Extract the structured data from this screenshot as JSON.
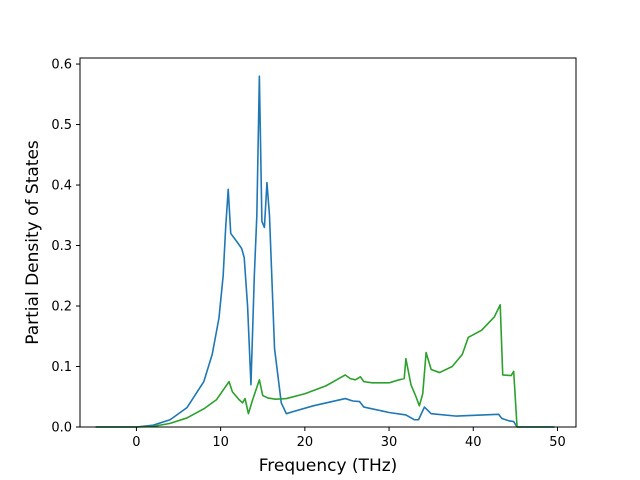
{
  "chart_data": {
    "type": "line",
    "xlabel": "Frequency (THz)",
    "ylabel": "Partial Density of States",
    "xlim": [
      -6.7,
      52.2
    ],
    "ylim": [
      0,
      0.61
    ],
    "xticks": [
      0,
      10,
      20,
      30,
      40,
      50
    ],
    "yticks": [
      0.0,
      0.1,
      0.2,
      0.3,
      0.4,
      0.5,
      0.6
    ],
    "xtick_labels": [
      "0",
      "10",
      "20",
      "30",
      "40",
      "50"
    ],
    "ytick_labels": [
      "0.0",
      "0.1",
      "0.2",
      "0.3",
      "0.4",
      "0.5",
      "0.6"
    ],
    "grid": false,
    "series": [
      {
        "color": "#1f77b4",
        "points": [
          [
            -4.8,
            0.0
          ],
          [
            0.0,
            0.0
          ],
          [
            2.0,
            0.003
          ],
          [
            4.0,
            0.012
          ],
          [
            6.0,
            0.032
          ],
          [
            8.0,
            0.075
          ],
          [
            9.0,
            0.12
          ],
          [
            9.8,
            0.18
          ],
          [
            10.3,
            0.25
          ],
          [
            10.6,
            0.33
          ],
          [
            10.9,
            0.393
          ],
          [
            11.2,
            0.32
          ],
          [
            12.0,
            0.305
          ],
          [
            12.5,
            0.295
          ],
          [
            12.8,
            0.28
          ],
          [
            13.2,
            0.2
          ],
          [
            13.6,
            0.07
          ],
          [
            14.0,
            0.25
          ],
          [
            14.3,
            0.35
          ],
          [
            14.6,
            0.58
          ],
          [
            14.9,
            0.34
          ],
          [
            15.2,
            0.33
          ],
          [
            15.5,
            0.404
          ],
          [
            15.8,
            0.35
          ],
          [
            16.4,
            0.13
          ],
          [
            17.2,
            0.04
          ],
          [
            17.8,
            0.022
          ],
          [
            18.5,
            0.025
          ],
          [
            21.0,
            0.035
          ],
          [
            24.8,
            0.047
          ],
          [
            25.7,
            0.043
          ],
          [
            26.5,
            0.042
          ],
          [
            27.0,
            0.033
          ],
          [
            30.0,
            0.024
          ],
          [
            32.0,
            0.02
          ],
          [
            33.0,
            0.012
          ],
          [
            33.5,
            0.012
          ],
          [
            34.2,
            0.033
          ],
          [
            35.0,
            0.022
          ],
          [
            38.0,
            0.018
          ],
          [
            43.0,
            0.021
          ],
          [
            43.4,
            0.014
          ],
          [
            44.3,
            0.01
          ],
          [
            44.8,
            0.009
          ],
          [
            45.2,
            0.0
          ],
          [
            49.6,
            0.0
          ]
        ]
      },
      {
        "color": "#2ca02c",
        "points": [
          [
            -4.8,
            0.0
          ],
          [
            0.0,
            0.0
          ],
          [
            2.0,
            0.001
          ],
          [
            4.0,
            0.006
          ],
          [
            6.0,
            0.015
          ],
          [
            8.0,
            0.03
          ],
          [
            9.5,
            0.045
          ],
          [
            10.5,
            0.065
          ],
          [
            11.0,
            0.075
          ],
          [
            11.4,
            0.058
          ],
          [
            12.2,
            0.045
          ],
          [
            12.6,
            0.04
          ],
          [
            12.9,
            0.047
          ],
          [
            13.3,
            0.022
          ],
          [
            13.8,
            0.045
          ],
          [
            14.6,
            0.078
          ],
          [
            15.0,
            0.052
          ],
          [
            15.6,
            0.048
          ],
          [
            16.5,
            0.046
          ],
          [
            17.8,
            0.047
          ],
          [
            20.0,
            0.055
          ],
          [
            22.5,
            0.068
          ],
          [
            24.8,
            0.086
          ],
          [
            25.4,
            0.08
          ],
          [
            26.0,
            0.078
          ],
          [
            26.6,
            0.083
          ],
          [
            27.0,
            0.075
          ],
          [
            28.0,
            0.073
          ],
          [
            30.0,
            0.073
          ],
          [
            31.2,
            0.078
          ],
          [
            31.8,
            0.08
          ],
          [
            32.0,
            0.113
          ],
          [
            32.6,
            0.07
          ],
          [
            33.2,
            0.05
          ],
          [
            33.6,
            0.035
          ],
          [
            34.0,
            0.055
          ],
          [
            34.4,
            0.123
          ],
          [
            35.0,
            0.095
          ],
          [
            36.0,
            0.09
          ],
          [
            37.5,
            0.1
          ],
          [
            38.7,
            0.12
          ],
          [
            39.4,
            0.148
          ],
          [
            41.0,
            0.16
          ],
          [
            42.5,
            0.182
          ],
          [
            43.2,
            0.202
          ],
          [
            43.5,
            0.086
          ],
          [
            44.5,
            0.085
          ],
          [
            44.8,
            0.092
          ],
          [
            45.2,
            0.0
          ],
          [
            49.6,
            0.0
          ]
        ]
      }
    ]
  }
}
